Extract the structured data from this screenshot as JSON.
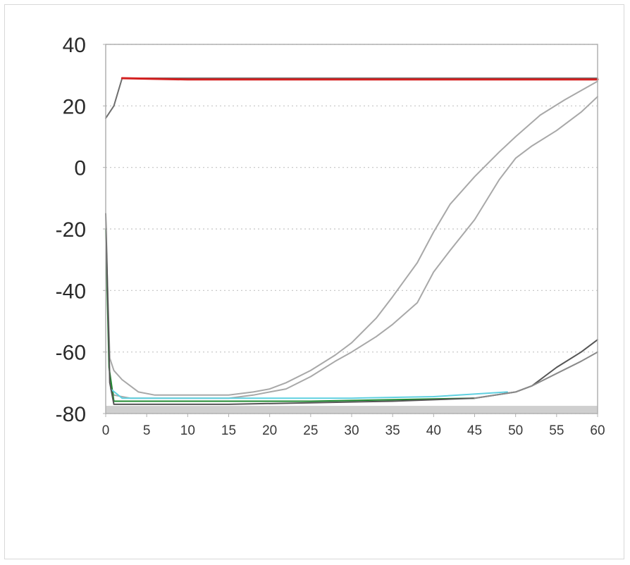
{
  "chart_data": {
    "type": "line",
    "title": "",
    "xlabel": "",
    "ylabel": "",
    "xlim": [
      0,
      60
    ],
    "ylim": [
      -80,
      40
    ],
    "x_ticks": [
      "0",
      "5",
      "10",
      "15",
      "20",
      "25",
      "30",
      "35",
      "40",
      "45",
      "50",
      "55",
      "60"
    ],
    "y_ticks": [
      "40",
      "20",
      "0",
      "-20",
      "-40",
      "-60",
      "-80"
    ],
    "grid": "horizontal-dotted",
    "legend": "none",
    "series": [
      {
        "color": "#6e6e6e",
        "points": [
          [
            0,
            16
          ],
          [
            1,
            20
          ],
          [
            2,
            29
          ],
          [
            10,
            29
          ],
          [
            20,
            29
          ],
          [
            30,
            29
          ],
          [
            40,
            29
          ],
          [
            50,
            29
          ],
          [
            60,
            29
          ]
        ]
      },
      {
        "color": "#d42020",
        "points": [
          [
            2,
            29
          ],
          [
            10,
            28.6
          ],
          [
            20,
            28.6
          ],
          [
            30,
            28.6
          ],
          [
            40,
            28.6
          ],
          [
            50,
            28.6
          ],
          [
            60,
            28.6
          ]
        ]
      },
      {
        "color": "#a8a8a8",
        "points": [
          [
            0,
            -20
          ],
          [
            0.5,
            -62
          ],
          [
            1,
            -66
          ],
          [
            2,
            -69
          ],
          [
            3,
            -71
          ],
          [
            4,
            -73
          ],
          [
            6,
            -74
          ],
          [
            10,
            -74
          ],
          [
            15,
            -74
          ],
          [
            18,
            -73
          ],
          [
            20,
            -72
          ],
          [
            22,
            -70
          ],
          [
            25,
            -66
          ],
          [
            28,
            -61
          ],
          [
            30,
            -57
          ],
          [
            33,
            -49
          ],
          [
            35,
            -42
          ],
          [
            38,
            -31
          ],
          [
            40,
            -21
          ],
          [
            42,
            -12
          ],
          [
            45,
            -3
          ],
          [
            48,
            5
          ],
          [
            50,
            10
          ],
          [
            53,
            17
          ],
          [
            56,
            22
          ],
          [
            58,
            25
          ],
          [
            60,
            28
          ]
        ]
      },
      {
        "color": "#a8a8a8",
        "points": [
          [
            0,
            -20
          ],
          [
            0.5,
            -70
          ],
          [
            1,
            -74
          ],
          [
            3,
            -75
          ],
          [
            10,
            -75
          ],
          [
            15,
            -75
          ],
          [
            18,
            -74
          ],
          [
            20,
            -73
          ],
          [
            22,
            -72
          ],
          [
            25,
            -68
          ],
          [
            28,
            -63
          ],
          [
            30,
            -60
          ],
          [
            33,
            -55
          ],
          [
            35,
            -51
          ],
          [
            38,
            -44
          ],
          [
            40,
            -34
          ],
          [
            42,
            -27
          ],
          [
            45,
            -17
          ],
          [
            48,
            -4
          ],
          [
            50,
            3
          ],
          [
            52,
            7
          ],
          [
            55,
            12
          ],
          [
            58,
            18
          ],
          [
            60,
            23
          ]
        ]
      },
      {
        "color": "#1f8a2f",
        "points": [
          [
            0,
            -20
          ],
          [
            0.4,
            -65
          ],
          [
            1,
            -76
          ],
          [
            5,
            -76
          ],
          [
            15,
            -76
          ],
          [
            25,
            -76
          ],
          [
            35,
            -75.5
          ],
          [
            45,
            -75
          ]
        ]
      },
      {
        "color": "#5fd0e0",
        "points": [
          [
            0.6,
            -72
          ],
          [
            2,
            -75
          ],
          [
            10,
            -75
          ],
          [
            20,
            -75
          ],
          [
            30,
            -75
          ],
          [
            40,
            -74.5
          ],
          [
            49,
            -73
          ]
        ]
      },
      {
        "color": "#555555",
        "points": [
          [
            0,
            -15
          ],
          [
            0.5,
            -70
          ],
          [
            1,
            -77
          ],
          [
            5,
            -77
          ],
          [
            15,
            -77
          ],
          [
            25,
            -76.5
          ],
          [
            35,
            -76
          ],
          [
            45,
            -75
          ],
          [
            50,
            -73
          ],
          [
            52,
            -71
          ],
          [
            55,
            -65
          ],
          [
            58,
            -60
          ],
          [
            60,
            -56
          ]
        ]
      },
      {
        "color": "#8a8a8a",
        "points": [
          [
            45,
            -75
          ],
          [
            50,
            -73
          ],
          [
            52,
            -71
          ],
          [
            55,
            -67
          ],
          [
            58,
            -63
          ],
          [
            60,
            -60
          ]
        ]
      }
    ]
  }
}
